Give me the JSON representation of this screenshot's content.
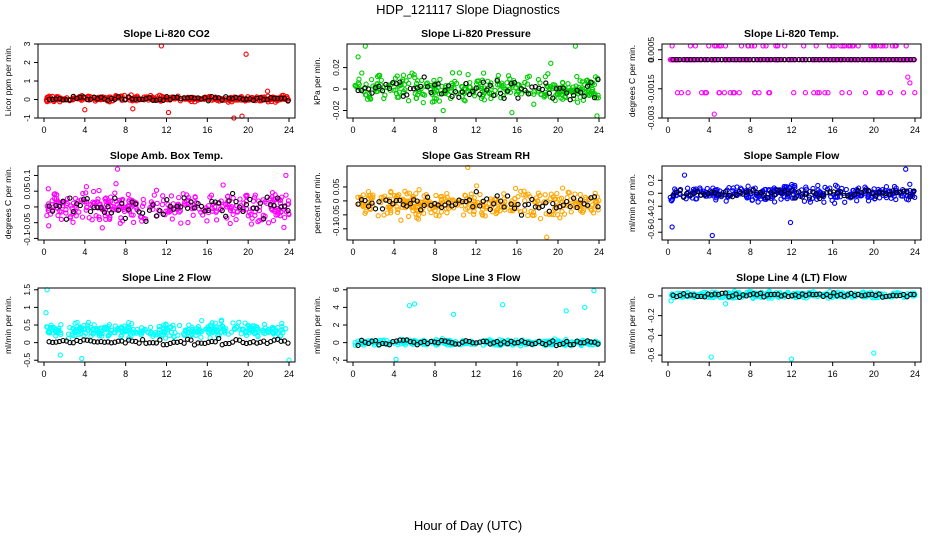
{
  "page": {
    "title": "HDP_121117  Slope Diagnostics",
    "xlabel": "Hour of Day (UTC)"
  },
  "colors": {
    "red": "#ff0000",
    "green": "#00cc00",
    "magenta": "#ff00ff",
    "orange": "#ffa500",
    "blue": "#0000ff",
    "cyan": "#00ffff",
    "black": "#000000"
  },
  "chart_data": [
    {
      "type": "scatter",
      "title": "Slope Li-820 CO2",
      "ylabel": "Licor ppm per min.",
      "xlim": [
        0,
        24
      ],
      "xticks": [
        0,
        4,
        8,
        12,
        16,
        20,
        24
      ],
      "ylim": [
        -1,
        3
      ],
      "yticks": [
        -1,
        0,
        1,
        2,
        3
      ],
      "series_color": "red",
      "base": 0.05,
      "spread": 0.15,
      "black_spread": 0.12,
      "outliers": [
        [
          11.5,
          2.9
        ],
        [
          19.8,
          2.45
        ],
        [
          19.4,
          -0.9
        ],
        [
          18.6,
          -1.0
        ],
        [
          12.2,
          -0.7
        ],
        [
          4.0,
          -0.55
        ],
        [
          21.9,
          0.45
        ],
        [
          8.7,
          -0.5
        ]
      ]
    },
    {
      "type": "scatter",
      "title": "Slope Li-820 Pressure",
      "ylabel": "kPa per min.",
      "xlim": [
        0,
        24
      ],
      "xticks": [
        0,
        4,
        8,
        12,
        16,
        20,
        24
      ],
      "ylim": [
        -0.027,
        0.042
      ],
      "yticks": [
        -0.02,
        0,
        0.02
      ],
      "series_color": "green",
      "base": 0.0,
      "spread": 0.012,
      "black_spread": 0.01,
      "outliers": [
        [
          1.2,
          0.04
        ],
        [
          21.7,
          0.04
        ],
        [
          0.5,
          0.03
        ],
        [
          15.5,
          -0.022
        ],
        [
          23.8,
          -0.025
        ],
        [
          8.8,
          -0.02
        ],
        [
          19.3,
          0.024
        ]
      ]
    },
    {
      "type": "scatter",
      "title": "Slope Li-820 Temp.",
      "ylabel": "degrees C per min.",
      "xlim": [
        0,
        24
      ],
      "xticks": [
        0,
        4,
        8,
        12,
        16,
        20,
        24
      ],
      "ylim": [
        -0.003,
        0.0008
      ],
      "yticks": [
        -0.003,
        -0.0015,
        0,
        0.0005
      ],
      "series_color": "magenta",
      "quantized": [
        0.0007,
        0,
        -0.0017
      ],
      "base": 0.0,
      "spread": 0,
      "black_spread": 0,
      "outliers": [
        [
          4.5,
          -0.0028
        ],
        [
          23.3,
          -0.0009
        ],
        [
          23.5,
          -0.0012
        ]
      ]
    },
    {
      "type": "scatter",
      "title": "Slope Amb. Box Temp.",
      "ylabel": "degrees C per min.",
      "xlim": [
        0,
        24
      ],
      "xticks": [
        0,
        4,
        8,
        12,
        16,
        20,
        24
      ],
      "ylim": [
        -0.105,
        0.13
      ],
      "yticks": [
        -0.1,
        -0.05,
        0,
        0.05,
        0.1
      ],
      "series_color": "magenta",
      "base": 0.0,
      "spread": 0.05,
      "black_spread": 0.04,
      "outliers": [
        [
          7.2,
          0.12
        ],
        [
          23.7,
          0.1
        ],
        [
          23.5,
          -0.065
        ]
      ]
    },
    {
      "type": "scatter",
      "title": "Slope Gas Stream RH",
      "ylabel": "percent per min.",
      "xlim": [
        0,
        24
      ],
      "xticks": [
        0,
        4,
        8,
        12,
        16,
        20,
        24
      ],
      "ylim": [
        -0.14,
        0.125
      ],
      "yticks": [
        -0.1,
        -0.05,
        0,
        0.05
      ],
      "series_color": "orange",
      "base": -0.01,
      "spread": 0.045,
      "black_spread": 0.03,
      "outliers": [
        [
          11.2,
          0.12
        ],
        [
          18.9,
          -0.13
        ]
      ]
    },
    {
      "type": "scatter",
      "title": "Slope Sample Flow",
      "ylabel": "ml/min per min.",
      "xlim": [
        0,
        24
      ],
      "xticks": [
        0,
        4,
        8,
        12,
        16,
        20,
        24
      ],
      "ylim": [
        -0.72,
        0.42
      ],
      "yticks": [
        -0.6,
        -0.4,
        -0.2,
        0,
        0.2
      ],
      "series_color": "blue",
      "base": 0.0,
      "spread": 0.12,
      "black_spread": 0.06,
      "outliers": [
        [
          4.3,
          -0.65
        ],
        [
          0.4,
          -0.52
        ],
        [
          11.9,
          -0.45
        ],
        [
          23.1,
          0.37
        ],
        [
          1.6,
          0.28
        ]
      ]
    },
    {
      "type": "scatter",
      "title": "Slope Line 2 Flow",
      "ylabel": "ml/min per min.",
      "xlim": [
        0,
        24
      ],
      "xticks": [
        0,
        4,
        8,
        12,
        16,
        20,
        24
      ],
      "ylim": [
        -0.55,
        1.55
      ],
      "yticks": [
        -0.5,
        0,
        0.5,
        1,
        1.5
      ],
      "series_color": "cyan",
      "base": 0.35,
      "spread": 0.2,
      "black_spread": 0.08,
      "black_base": 0.02,
      "outliers": [
        [
          0.3,
          1.5
        ],
        [
          0.2,
          0.85
        ],
        [
          24.0,
          -0.5
        ],
        [
          3.7,
          -0.45
        ],
        [
          1.6,
          -0.35
        ]
      ]
    },
    {
      "type": "scatter",
      "title": "Slope Line 3 Flow",
      "ylabel": "ml/min per min.",
      "xlim": [
        0,
        24
      ],
      "xticks": [
        0,
        4,
        8,
        12,
        16,
        20,
        24
      ],
      "ylim": [
        -2.2,
        6.2
      ],
      "yticks": [
        -2,
        0,
        2,
        4,
        6
      ],
      "series_color": "cyan",
      "base": 0.0,
      "spread": 0.3,
      "black_spread": 0.3,
      "outliers": [
        [
          4.2,
          -1.9
        ],
        [
          23.5,
          5.9
        ],
        [
          5.5,
          4.2
        ],
        [
          6.0,
          4.4
        ],
        [
          14.6,
          4.3
        ],
        [
          20.8,
          3.6
        ],
        [
          22.6,
          4.0
        ],
        [
          9.8,
          3.2
        ]
      ]
    },
    {
      "type": "scatter",
      "title": "Slope Line 4 (LT) Flow",
      "ylabel": "ml/min per min.",
      "xlim": [
        0,
        24
      ],
      "xticks": [
        0,
        4,
        8,
        12,
        16,
        20,
        24
      ],
      "ylim": [
        -0.67,
        0.08
      ],
      "yticks": [
        -0.6,
        -0.4,
        -0.2,
        0
      ],
      "series_color": "cyan",
      "base": 0.01,
      "spread": 0.03,
      "black_spread": 0.025,
      "outliers": [
        [
          4.2,
          -0.62
        ],
        [
          12.0,
          -0.64
        ],
        [
          20.0,
          -0.58
        ],
        [
          0.3,
          -0.05
        ],
        [
          5.6,
          -0.08
        ]
      ]
    }
  ]
}
